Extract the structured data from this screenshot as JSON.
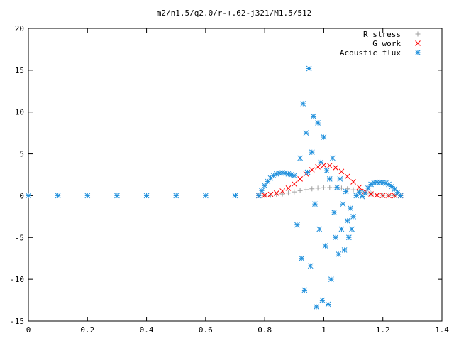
{
  "chart_data": {
    "type": "scatter",
    "title": "m2/n1.5/q2.0/r-+.62-j321/M1.5/512",
    "xlabel": "",
    "ylabel": "",
    "xlim": [
      0,
      1.4
    ],
    "ylim": [
      -15,
      20
    ],
    "xticks": [
      "0",
      "0.2",
      "0.4",
      "0.6",
      "0.8",
      "1",
      "1.2",
      "1.4"
    ],
    "yticks": [
      "-15",
      "-10",
      "-5",
      "0",
      "5",
      "10",
      "15",
      "20"
    ],
    "legend_position": "top-right",
    "grid": false,
    "series": [
      {
        "name": "R stress",
        "color": "#a0a0a0",
        "marker": "plus",
        "x": [
          0.78,
          0.8,
          0.82,
          0.84,
          0.86,
          0.88,
          0.9,
          0.92,
          0.94,
          0.96,
          0.98,
          1.0,
          1.02,
          1.04,
          1.06,
          1.08,
          1.1,
          1.12,
          1.14,
          1.16,
          1.18,
          1.2,
          1.22,
          1.24,
          1.26
        ],
        "y": [
          0.0,
          0.02,
          0.05,
          0.1,
          0.2,
          0.32,
          0.45,
          0.6,
          0.72,
          0.82,
          0.9,
          0.95,
          0.97,
          0.95,
          0.9,
          0.82,
          0.7,
          0.55,
          0.38,
          0.22,
          0.1,
          0.04,
          0.01,
          0.0,
          0.0
        ]
      },
      {
        "name": "G work",
        "color": "#ff0000",
        "marker": "cross",
        "x": [
          0.78,
          0.8,
          0.82,
          0.84,
          0.86,
          0.88,
          0.9,
          0.92,
          0.94,
          0.96,
          0.98,
          1.0,
          1.02,
          1.04,
          1.06,
          1.08,
          1.1,
          1.12,
          1.14,
          1.16,
          1.18,
          1.2,
          1.22,
          1.24,
          1.26
        ],
        "y": [
          0.0,
          0.05,
          0.15,
          0.3,
          0.55,
          0.9,
          1.4,
          2.0,
          2.6,
          3.1,
          3.45,
          3.65,
          3.6,
          3.35,
          2.9,
          2.3,
          1.65,
          1.0,
          0.5,
          0.2,
          0.06,
          0.02,
          0.0,
          0.0,
          0.0
        ]
      },
      {
        "name": "Acoustic flux",
        "color": "#1e8fdc",
        "marker": "star",
        "x": [
          0.0,
          0.1,
          0.2,
          0.3,
          0.4,
          0.5,
          0.6,
          0.7,
          0.78,
          0.79,
          0.8,
          0.81,
          0.82,
          0.83,
          0.84,
          0.85,
          0.86,
          0.87,
          0.88,
          0.89,
          0.9,
          0.91,
          0.92,
          0.925,
          0.93,
          0.935,
          0.94,
          0.945,
          0.95,
          0.955,
          0.96,
          0.965,
          0.97,
          0.975,
          0.98,
          0.985,
          0.99,
          0.995,
          1.0,
          1.005,
          1.01,
          1.015,
          1.02,
          1.025,
          1.03,
          1.035,
          1.04,
          1.045,
          1.05,
          1.055,
          1.06,
          1.065,
          1.07,
          1.075,
          1.08,
          1.085,
          1.09,
          1.095,
          1.1,
          1.11,
          1.12,
          1.13,
          1.14,
          1.15,
          1.16,
          1.17,
          1.18,
          1.19,
          1.2,
          1.21,
          1.22,
          1.23,
          1.24,
          1.25,
          1.26
        ],
        "y": [
          0.0,
          0.0,
          0.0,
          0.0,
          0.0,
          0.0,
          0.0,
          0.0,
          0.0,
          0.6,
          1.2,
          1.7,
          2.1,
          2.4,
          2.6,
          2.7,
          2.75,
          2.7,
          2.6,
          2.5,
          2.4,
          -3.5,
          4.5,
          -7.5,
          11.0,
          -11.3,
          7.5,
          2.8,
          15.2,
          -8.4,
          5.2,
          9.5,
          -1.0,
          -13.3,
          8.7,
          -4.0,
          4.0,
          -12.5,
          7.0,
          -6.0,
          3.0,
          -13.0,
          2.0,
          -10.0,
          4.5,
          -2.0,
          -5.0,
          1.0,
          -7.0,
          2.0,
          -4.0,
          -1.0,
          -6.5,
          0.5,
          -3.0,
          -5.0,
          -1.5,
          -4.0,
          -2.5,
          0.0,
          0.4,
          -0.1,
          0.3,
          0.9,
          1.35,
          1.55,
          1.6,
          1.6,
          1.55,
          1.5,
          1.35,
          1.1,
          0.8,
          0.4,
          0.0
        ]
      }
    ]
  }
}
